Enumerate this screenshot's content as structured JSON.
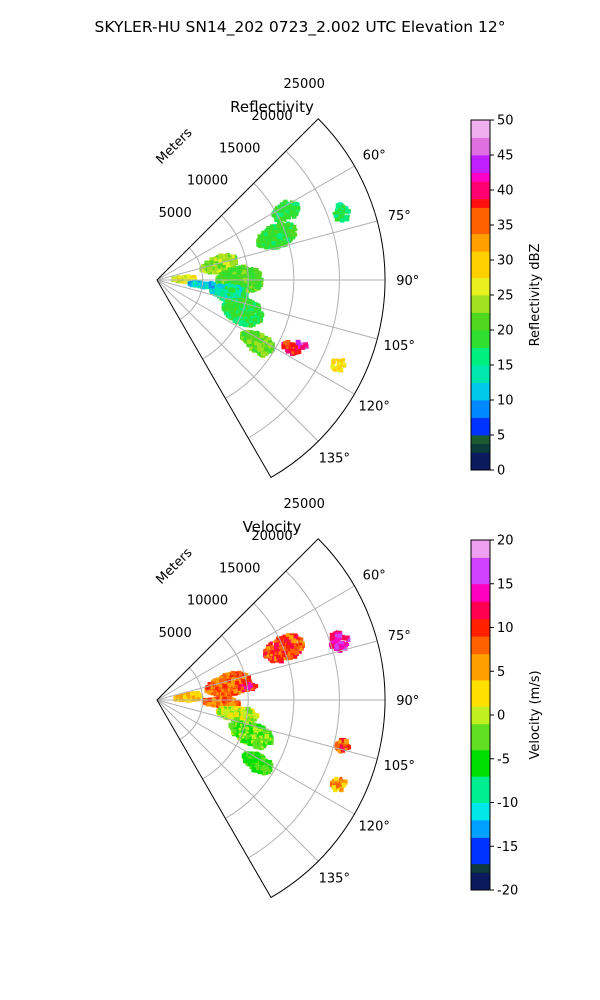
{
  "figure": {
    "suptitle": "SKYLER-HU  SN14_202  0723_2.002 UTC Elevation 12°"
  },
  "chart_data": [
    {
      "type": "ppi",
      "title": "Reflectivity",
      "range_label": "Meters",
      "range_max": 25000,
      "range_ticks": [
        5000,
        10000,
        15000,
        20000,
        25000
      ],
      "azimuth_min": 45,
      "azimuth_max": 150,
      "azimuth_ticks": [
        60,
        75,
        90,
        105,
        120,
        135
      ],
      "azimuth_tick_labels": [
        "60°",
        "75°",
        "90°",
        "105°",
        "120°",
        "135°"
      ],
      "grid": true,
      "colorbar": {
        "label": "Reflectivity dBZ",
        "min": 0,
        "max": 50,
        "ticks": [
          0,
          5,
          10,
          15,
          20,
          25,
          30,
          35,
          40,
          45,
          50
        ],
        "stops": [
          [
            0,
            "#0a1a5c"
          ],
          [
            2,
            "#0d3a3a"
          ],
          [
            4,
            "#1a5a30"
          ],
          [
            5,
            "#0033ff"
          ],
          [
            7,
            "#0088ff"
          ],
          [
            10,
            "#00c8e8"
          ],
          [
            13,
            "#00e8b0"
          ],
          [
            15,
            "#00f080"
          ],
          [
            17,
            "#30e030"
          ],
          [
            20,
            "#50d820"
          ],
          [
            22,
            "#a0e020"
          ],
          [
            25,
            "#e8f020"
          ],
          [
            28,
            "#ffd000"
          ],
          [
            31,
            "#ffa000"
          ],
          [
            34,
            "#ff6000"
          ],
          [
            37,
            "#ff1010"
          ],
          [
            39,
            "#ff0070"
          ],
          [
            41,
            "#ff00c8"
          ],
          [
            43,
            "#c020ff"
          ],
          [
            45,
            "#e070e0"
          ],
          [
            48,
            "#f0b0f0"
          ],
          [
            50,
            "#fff0ff"
          ]
        ]
      },
      "echoes": [
        {
          "az": 88,
          "r": 3000,
          "dr": 2500,
          "daz": 10,
          "v": 26
        },
        {
          "az": 76,
          "r": 7000,
          "dr": 4000,
          "daz": 14,
          "v": 23
        },
        {
          "az": 90,
          "r": 9000,
          "dr": 5000,
          "daz": 18,
          "v": 20
        },
        {
          "az": 70,
          "r": 14000,
          "dr": 4500,
          "daz": 10,
          "v": 19
        },
        {
          "az": 62,
          "r": 16000,
          "dr": 3000,
          "daz": 7,
          "v": 18
        },
        {
          "az": 100,
          "r": 8000,
          "dr": 4000,
          "daz": 12,
          "v": 15
        },
        {
          "az": 110,
          "r": 10000,
          "dr": 4500,
          "daz": 16,
          "v": 18
        },
        {
          "az": 122,
          "r": 13000,
          "dr": 4000,
          "daz": 9,
          "v": 22
        },
        {
          "az": 117,
          "r": 16500,
          "dr": 2000,
          "daz": 4,
          "v": 38
        },
        {
          "az": 114,
          "r": 17500,
          "dr": 1200,
          "daz": 2,
          "v": 43
        },
        {
          "az": 115,
          "r": 22000,
          "dr": 1500,
          "daz": 4,
          "v": 28
        },
        {
          "az": 70,
          "r": 21500,
          "dr": 1800,
          "daz": 5,
          "v": 17
        },
        {
          "az": 96,
          "r": 5000,
          "dr": 3000,
          "daz": 6,
          "v": 12
        }
      ]
    },
    {
      "type": "ppi",
      "title": "Velocity",
      "range_label": "Meters",
      "range_max": 25000,
      "range_ticks": [
        5000,
        10000,
        15000,
        20000,
        25000
      ],
      "azimuth_min": 45,
      "azimuth_max": 150,
      "azimuth_ticks": [
        60,
        75,
        90,
        105,
        120,
        135
      ],
      "azimuth_tick_labels": [
        "60°",
        "75°",
        "90°",
        "105°",
        "120°",
        "135°"
      ],
      "grid": true,
      "colorbar": {
        "label": "Velocity (m/s)",
        "min": -20,
        "max": 20,
        "ticks": [
          -20,
          -15,
          -10,
          -5,
          0,
          5,
          10,
          15,
          20
        ],
        "stops": [
          [
            -20,
            "#0a1a5c"
          ],
          [
            -18,
            "#0d3a3a"
          ],
          [
            -16.5,
            "#0033ff"
          ],
          [
            -14,
            "#00a0ff"
          ],
          [
            -12,
            "#00e8e8"
          ],
          [
            -10,
            "#00f090"
          ],
          [
            -7,
            "#00e000"
          ],
          [
            -4,
            "#60e020"
          ],
          [
            -1,
            "#c0f020"
          ],
          [
            1,
            "#ffe000"
          ],
          [
            4,
            "#ffa000"
          ],
          [
            7,
            "#ff6000"
          ],
          [
            9,
            "#ff2000"
          ],
          [
            11,
            "#ff0050"
          ],
          [
            13,
            "#ff00c0"
          ],
          [
            15,
            "#d040ff"
          ],
          [
            18,
            "#f0a0f0"
          ],
          [
            20,
            "#fff0ff"
          ]
        ]
      },
      "echoes": [
        {
          "az": 85,
          "r": 3500,
          "dr": 3000,
          "daz": 12,
          "v": 4
        },
        {
          "az": 78,
          "r": 8000,
          "dr": 5000,
          "daz": 16,
          "v": 8
        },
        {
          "az": 82,
          "r": 10000,
          "dr": 2000,
          "daz": 4,
          "v": 11
        },
        {
          "az": 68,
          "r": 15000,
          "dr": 4500,
          "daz": 10,
          "v": 9
        },
        {
          "az": 72,
          "r": 21000,
          "dr": 2000,
          "daz": 6,
          "v": 14
        },
        {
          "az": 92,
          "r": 7000,
          "dr": 4000,
          "daz": 8,
          "v": 7
        },
        {
          "az": 100,
          "r": 9000,
          "dr": 4500,
          "daz": 10,
          "v": 0
        },
        {
          "az": 110,
          "r": 11000,
          "dr": 5000,
          "daz": 12,
          "v": -3
        },
        {
          "az": 122,
          "r": 13000,
          "dr": 3500,
          "daz": 8,
          "v": -4
        },
        {
          "az": 115,
          "r": 22000,
          "dr": 1500,
          "daz": 4,
          "v": 6
        },
        {
          "az": 104,
          "r": 21000,
          "dr": 1500,
          "daz": 4,
          "v": 9
        }
      ]
    }
  ]
}
